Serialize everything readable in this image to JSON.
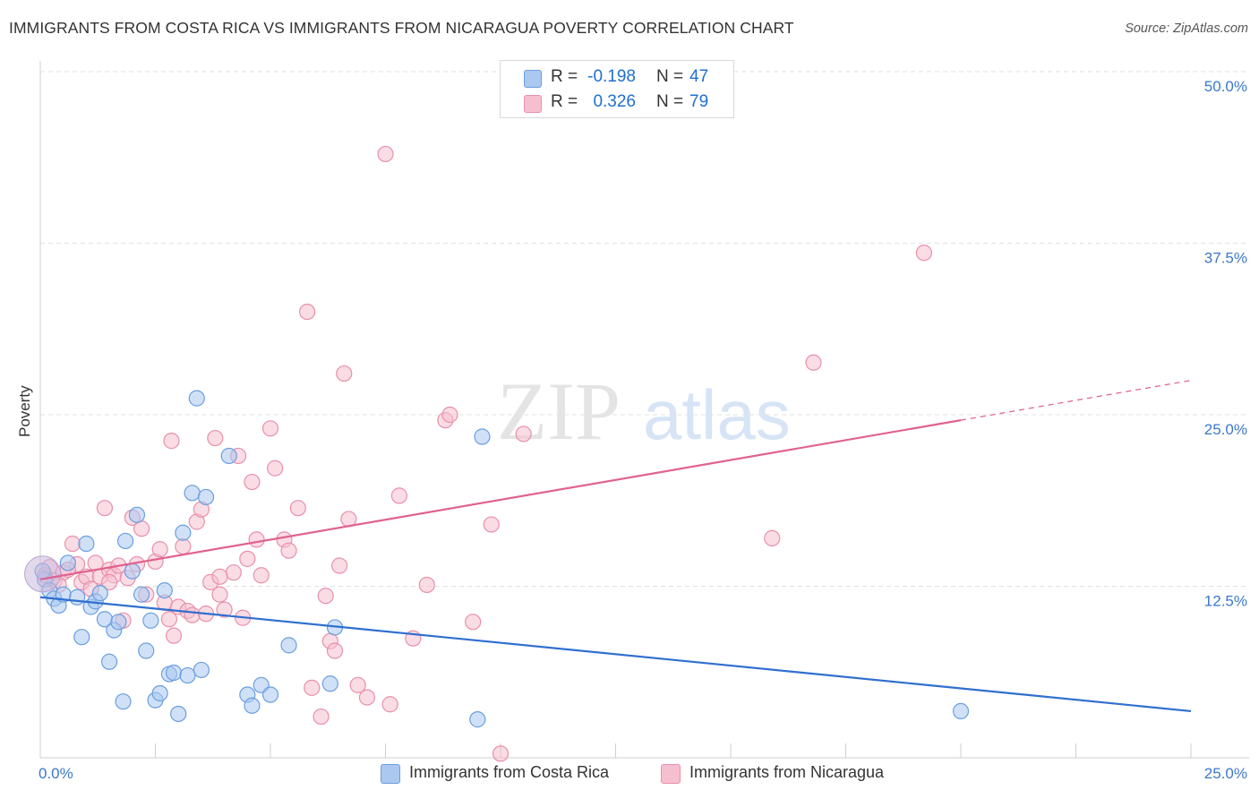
{
  "header": {
    "title": "IMMIGRANTS FROM COSTA RICA VS IMMIGRANTS FROM NICARAGUA POVERTY CORRELATION CHART",
    "source": "Source: ZipAtlas.com"
  },
  "watermark": {
    "zip": "ZIP",
    "atlas": "atlas"
  },
  "legend": {
    "series": [
      {
        "r_label": "R =",
        "r_value": "-0.198",
        "n_label": "N =",
        "n_value": "47"
      },
      {
        "r_label": "R =",
        "r_value": "0.326",
        "n_label": "N =",
        "n_value": "79"
      }
    ]
  },
  "colors": {
    "blue_fill": "#aac8f0",
    "blue_stroke": "#6a9ee0",
    "blue_line": "#2f6fcf",
    "pink_fill": "#f6bfd0",
    "pink_stroke": "#e890aa",
    "pink_line": "#e0628e",
    "grid": "#e2e2e2",
    "axis_text": "#3a78cc"
  },
  "chart_data": {
    "type": "scatter",
    "title": "IMMIGRANTS FROM COSTA RICA VS IMMIGRANTS FROM NICARAGUA POVERTY CORRELATION CHART",
    "xlabel": "",
    "ylabel": "Poverty",
    "xlim": [
      0,
      25
    ],
    "ylim": [
      0,
      50
    ],
    "x_ticks": [
      "0.0%",
      "25.0%"
    ],
    "y_ticks": [
      {
        "value": 12.5,
        "label": "12.5%"
      },
      {
        "value": 25,
        "label": "25.0%"
      },
      {
        "value": 37.5,
        "label": "37.5%"
      },
      {
        "value": 50,
        "label": "50.0%"
      }
    ],
    "grid": true,
    "series": [
      {
        "name": "Immigrants from Costa Rica",
        "r": -0.198,
        "n": 47,
        "color": "#aac8f0",
        "trend": {
          "x_start": 0,
          "y_start": 11.7,
          "x_end": 25,
          "y_end": 3.4
        },
        "points": [
          [
            0.1,
            13.0
          ],
          [
            0.2,
            12.2
          ],
          [
            0.3,
            11.6
          ],
          [
            0.4,
            11.1
          ],
          [
            0.5,
            11.9
          ],
          [
            0.6,
            14.2
          ],
          [
            0.8,
            11.7
          ],
          [
            0.9,
            8.8
          ],
          [
            1.0,
            15.6
          ],
          [
            1.1,
            11.0
          ],
          [
            1.2,
            11.4
          ],
          [
            1.3,
            12.0
          ],
          [
            1.4,
            10.1
          ],
          [
            1.5,
            7.0
          ],
          [
            1.6,
            9.3
          ],
          [
            1.7,
            9.9
          ],
          [
            1.8,
            4.1
          ],
          [
            1.85,
            15.8
          ],
          [
            2.0,
            13.6
          ],
          [
            2.1,
            17.7
          ],
          [
            2.2,
            11.9
          ],
          [
            2.3,
            7.8
          ],
          [
            2.4,
            10.0
          ],
          [
            2.5,
            4.2
          ],
          [
            2.6,
            4.7
          ],
          [
            2.7,
            12.2
          ],
          [
            2.8,
            6.1
          ],
          [
            2.9,
            6.2
          ],
          [
            3.0,
            3.2
          ],
          [
            3.1,
            16.4
          ],
          [
            3.2,
            6.0
          ],
          [
            3.3,
            19.3
          ],
          [
            3.4,
            26.2
          ],
          [
            3.5,
            6.4
          ],
          [
            3.6,
            19.0
          ],
          [
            4.1,
            22.0
          ],
          [
            4.5,
            4.6
          ],
          [
            4.6,
            3.8
          ],
          [
            4.8,
            5.3
          ],
          [
            5.0,
            4.6
          ],
          [
            5.4,
            8.2
          ],
          [
            6.3,
            5.4
          ],
          [
            6.4,
            9.5
          ],
          [
            9.5,
            2.8
          ],
          [
            9.6,
            23.4
          ],
          [
            20.0,
            3.4
          ],
          [
            0.05,
            13.6
          ]
        ]
      },
      {
        "name": "Immigrants from Nicaragua",
        "r": 0.326,
        "n": 79,
        "color": "#f6bfd0",
        "trend": {
          "x_start": 0,
          "y_start": 13.0,
          "x_end": 20,
          "y_end": 24.6,
          "dash_x_end": 25,
          "dash_y_end": 27.5
        },
        "points": [
          [
            0.1,
            13.3
          ],
          [
            0.2,
            13.9
          ],
          [
            0.3,
            12.9
          ],
          [
            0.5,
            13.5
          ],
          [
            0.7,
            15.6
          ],
          [
            0.8,
            14.1
          ],
          [
            0.9,
            12.8
          ],
          [
            1.0,
            13.2
          ],
          [
            1.1,
            12.3
          ],
          [
            1.2,
            14.2
          ],
          [
            1.3,
            13.2
          ],
          [
            1.4,
            18.2
          ],
          [
            1.5,
            13.7
          ],
          [
            1.6,
            13.3
          ],
          [
            1.7,
            14.0
          ],
          [
            1.8,
            10.0
          ],
          [
            1.9,
            13.1
          ],
          [
            2.0,
            17.5
          ],
          [
            2.1,
            14.1
          ],
          [
            2.2,
            16.7
          ],
          [
            2.3,
            11.9
          ],
          [
            2.5,
            14.3
          ],
          [
            2.6,
            15.2
          ],
          [
            2.7,
            11.3
          ],
          [
            2.8,
            10.1
          ],
          [
            2.85,
            23.1
          ],
          [
            2.9,
            8.9
          ],
          [
            3.0,
            11.0
          ],
          [
            3.1,
            15.4
          ],
          [
            3.2,
            10.7
          ],
          [
            3.3,
            10.4
          ],
          [
            3.4,
            17.2
          ],
          [
            3.5,
            18.1
          ],
          [
            3.6,
            10.5
          ],
          [
            3.7,
            12.8
          ],
          [
            3.8,
            23.3
          ],
          [
            3.9,
            11.9
          ],
          [
            4.0,
            10.8
          ],
          [
            4.2,
            13.5
          ],
          [
            4.3,
            22.0
          ],
          [
            4.4,
            10.2
          ],
          [
            4.5,
            14.5
          ],
          [
            4.6,
            20.1
          ],
          [
            4.7,
            15.9
          ],
          [
            4.8,
            13.3
          ],
          [
            5.0,
            24.0
          ],
          [
            5.1,
            21.1
          ],
          [
            5.3,
            15.9
          ],
          [
            5.4,
            15.1
          ],
          [
            5.6,
            18.2
          ],
          [
            5.8,
            32.5
          ],
          [
            5.9,
            5.1
          ],
          [
            6.1,
            3.0
          ],
          [
            6.2,
            11.8
          ],
          [
            6.3,
            8.5
          ],
          [
            6.4,
            7.8
          ],
          [
            6.5,
            14.0
          ],
          [
            6.6,
            28.0
          ],
          [
            6.7,
            17.4
          ],
          [
            6.9,
            5.3
          ],
          [
            7.1,
            4.4
          ],
          [
            7.5,
            44.0
          ],
          [
            7.6,
            3.9
          ],
          [
            7.8,
            19.1
          ],
          [
            8.1,
            8.7
          ],
          [
            8.4,
            12.6
          ],
          [
            8.8,
            24.6
          ],
          [
            8.9,
            25.0
          ],
          [
            9.4,
            9.9
          ],
          [
            9.8,
            17.0
          ],
          [
            10.0,
            0.3
          ],
          [
            10.5,
            23.6
          ],
          [
            15.9,
            16.0
          ],
          [
            16.8,
            28.8
          ],
          [
            19.2,
            36.8
          ],
          [
            0.4,
            12.6
          ],
          [
            0.6,
            13.7
          ],
          [
            1.5,
            12.8
          ],
          [
            3.9,
            13.2
          ]
        ]
      }
    ]
  },
  "bottom_legend": [
    {
      "label": "Immigrants from Costa Rica"
    },
    {
      "label": "Immigrants from Nicaragua"
    }
  ]
}
